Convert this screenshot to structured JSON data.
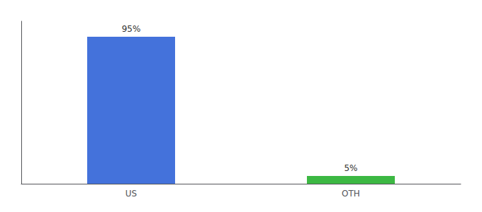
{
  "chart_data": {
    "type": "bar",
    "categories": [
      "US",
      "OTH"
    ],
    "values": [
      95,
      5
    ],
    "value_labels": [
      "95%",
      "5%"
    ],
    "colors": [
      "#4472db",
      "#3cb843"
    ],
    "ylim": [
      0,
      105
    ],
    "grid": false,
    "data_labels": true,
    "tick_labels": "x"
  }
}
